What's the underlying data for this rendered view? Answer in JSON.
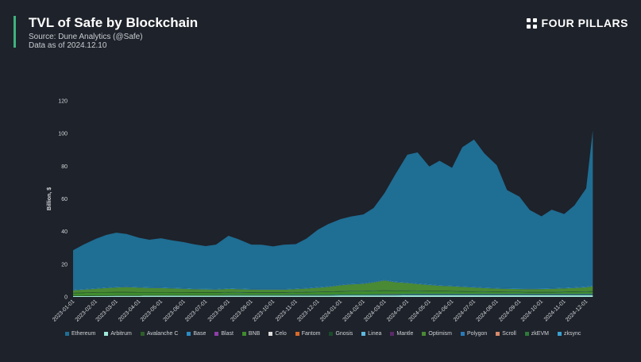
{
  "header": {
    "title": "TVL of Safe by Blockchain",
    "source": "Source: Dune Analytics (@Safe)",
    "data_as_of": "Data as of 2024.12.10",
    "brand": "FOUR PILLARS"
  },
  "colors": {
    "accent": "#3fb27f",
    "background": "#1e222a"
  },
  "chart_data": {
    "type": "area",
    "stacked": true,
    "title": "TVL of Safe by Blockchain",
    "ylabel": "Billion, $",
    "xlabel": "",
    "ylim": [
      0,
      120
    ],
    "yticks": [
      0,
      20,
      40,
      60,
      80,
      100,
      120
    ],
    "grid": false,
    "legend_position": "bottom",
    "xticks": [
      "2023-01-01",
      "2023-02-01",
      "2023-03-01",
      "2023-04-01",
      "2023-05-01",
      "2023-06-01",
      "2023-07-01",
      "2023-08-01",
      "2023-09-01",
      "2023-10-01",
      "2023-11-01",
      "2023-12-01",
      "2024-01-01",
      "2024-02-01",
      "2024-03-01",
      "2024-04-01",
      "2024-05-01",
      "2024-06-01",
      "2024-07-01",
      "2024-08-01",
      "2024-09-01",
      "2024-10-01",
      "2024-11-01",
      "2024-12-01"
    ],
    "x": [
      "2023-01-01",
      "2023-01-15",
      "2023-02-01",
      "2023-02-15",
      "2023-03-01",
      "2023-03-15",
      "2023-04-01",
      "2023-04-15",
      "2023-05-01",
      "2023-05-15",
      "2023-06-01",
      "2023-06-15",
      "2023-07-01",
      "2023-07-15",
      "2023-08-01",
      "2023-08-15",
      "2023-09-01",
      "2023-09-15",
      "2023-10-01",
      "2023-10-15",
      "2023-11-01",
      "2023-11-15",
      "2023-12-01",
      "2023-12-15",
      "2024-01-01",
      "2024-01-15",
      "2024-02-01",
      "2024-02-15",
      "2024-03-01",
      "2024-03-15",
      "2024-04-01",
      "2024-04-15",
      "2024-05-01",
      "2024-05-15",
      "2024-06-01",
      "2024-06-15",
      "2024-07-01",
      "2024-07-15",
      "2024-08-01",
      "2024-08-15",
      "2024-09-01",
      "2024-09-15",
      "2024-10-01",
      "2024-10-15",
      "2024-11-01",
      "2024-11-15",
      "2024-12-01",
      "2024-12-10"
    ],
    "series": [
      {
        "name": "Ethereum",
        "color": "#1f6e94",
        "values": [
          24,
          27,
          30,
          32,
          33,
          32,
          30,
          29,
          30,
          29,
          28,
          27,
          26,
          27,
          32,
          30,
          27,
          27,
          26,
          27,
          27,
          30,
          35,
          38,
          40,
          41,
          42,
          45,
          53,
          65,
          78,
          80,
          72,
          76,
          72,
          85,
          90,
          82,
          75,
          60,
          56,
          48,
          44,
          48,
          45,
          50,
          60,
          95
        ]
      },
      {
        "name": "Arbitrum",
        "color": "#9fe8d8",
        "values": [
          0.5,
          0.5,
          0.6,
          0.6,
          0.7,
          0.7,
          0.7,
          0.8,
          0.8,
          0.8,
          0.8,
          0.8,
          0.8,
          0.8,
          0.8,
          0.8,
          0.8,
          0.8,
          0.8,
          0.8,
          0.8,
          0.8,
          0.8,
          0.8,
          0.9,
          0.9,
          0.9,
          0.9,
          0.9,
          0.9,
          1,
          1,
          1,
          1,
          1,
          1,
          1,
          1,
          1,
          1,
          1,
          1,
          1,
          1,
          1,
          1,
          1,
          1
        ]
      },
      {
        "name": "Avalanche C",
        "color": "#2d5e2a",
        "values": [
          0.3,
          0.3,
          0.3,
          0.3,
          0.3,
          0.3,
          0.3,
          0.3,
          0.3,
          0.3,
          0.3,
          0.3,
          0.3,
          0.3,
          0.3,
          0.3,
          0.3,
          0.3,
          0.3,
          0.3,
          0.3,
          0.3,
          0.3,
          0.3,
          0.3,
          0.3,
          0.3,
          0.3,
          0.3,
          0.3,
          0.3,
          0.3,
          0.3,
          0.3,
          0.3,
          0.3,
          0.3,
          0.3,
          0.3,
          0.3,
          0.3,
          0.3,
          0.3,
          0.3,
          0.3,
          0.3,
          0.3,
          0.3
        ]
      },
      {
        "name": "Base",
        "color": "#2b8cc4",
        "values": [
          0,
          0,
          0,
          0,
          0,
          0,
          0,
          0,
          0,
          0,
          0,
          0,
          0,
          0,
          0.1,
          0.1,
          0.1,
          0.1,
          0.1,
          0.1,
          0.2,
          0.2,
          0.2,
          0.2,
          0.3,
          0.3,
          0.3,
          0.4,
          0.4,
          0.4,
          0.4,
          0.4,
          0.4,
          0.4,
          0.4,
          0.4,
          0.4,
          0.4,
          0.4,
          0.4,
          0.4,
          0.4,
          0.4,
          0.4,
          0.4,
          0.4,
          0.4,
          0.5
        ]
      },
      {
        "name": "Blast",
        "color": "#8e3ea8",
        "values": [
          0,
          0,
          0,
          0,
          0,
          0,
          0,
          0,
          0,
          0,
          0,
          0,
          0,
          0,
          0,
          0,
          0,
          0,
          0,
          0,
          0,
          0,
          0,
          0,
          0,
          0,
          0,
          0,
          0.1,
          0.1,
          0.1,
          0.1,
          0.1,
          0.1,
          0.1,
          0.1,
          0.1,
          0.1,
          0.1,
          0.1,
          0.1,
          0.1,
          0.1,
          0.1,
          0.1,
          0.1,
          0.1,
          0.1
        ]
      },
      {
        "name": "BNB",
        "color": "#3f8c2e",
        "values": [
          1.5,
          1.6,
          1.7,
          1.8,
          1.8,
          1.8,
          1.7,
          1.6,
          1.6,
          1.5,
          1.5,
          1.4,
          1.4,
          1.4,
          1.5,
          1.4,
          1.3,
          1.3,
          1.3,
          1.3,
          1.4,
          1.5,
          1.6,
          1.7,
          1.8,
          1.9,
          1.9,
          2,
          2.1,
          2,
          1.9,
          1.8,
          1.7,
          1.7,
          1.6,
          1.5,
          1.4,
          1.3,
          1.2,
          1.1,
          1.1,
          1,
          1,
          1,
          1.1,
          1.2,
          1.3,
          1.4
        ]
      },
      {
        "name": "Celo",
        "color": "#dddddd",
        "values": [
          0,
          0,
          0,
          0,
          0,
          0,
          0,
          0,
          0,
          0,
          0,
          0,
          0,
          0,
          0,
          0,
          0,
          0,
          0,
          0,
          0,
          0,
          0,
          0,
          0,
          0,
          0,
          0,
          0,
          0,
          0,
          0,
          0,
          0,
          0,
          0,
          0,
          0,
          0,
          0,
          0,
          0,
          0,
          0,
          0,
          0,
          0,
          0
        ]
      },
      {
        "name": "Fantom",
        "color": "#d86a2a",
        "values": [
          0,
          0,
          0,
          0,
          0,
          0,
          0,
          0,
          0,
          0,
          0,
          0,
          0,
          0,
          0,
          0,
          0,
          0,
          0,
          0,
          0,
          0,
          0,
          0,
          0,
          0,
          0,
          0,
          0,
          0,
          0,
          0,
          0,
          0,
          0,
          0,
          0,
          0,
          0,
          0,
          0,
          0,
          0,
          0,
          0,
          0,
          0,
          0
        ]
      },
      {
        "name": "Gnosis",
        "color": "#1a4a2a",
        "values": [
          0.2,
          0.2,
          0.2,
          0.2,
          0.2,
          0.2,
          0.2,
          0.2,
          0.2,
          0.2,
          0.2,
          0.2,
          0.2,
          0.2,
          0.2,
          0.2,
          0.2,
          0.2,
          0.2,
          0.2,
          0.2,
          0.2,
          0.2,
          0.2,
          0.2,
          0.2,
          0.2,
          0.2,
          0.2,
          0.2,
          0.2,
          0.2,
          0.2,
          0.2,
          0.2,
          0.2,
          0.2,
          0.2,
          0.2,
          0.2,
          0.2,
          0.2,
          0.2,
          0.2,
          0.2,
          0.2,
          0.2,
          0.2
        ]
      },
      {
        "name": "Linea",
        "color": "#5fb8e0",
        "values": [
          0,
          0,
          0,
          0,
          0,
          0,
          0,
          0,
          0,
          0,
          0,
          0,
          0,
          0,
          0.1,
          0.1,
          0.1,
          0.1,
          0.1,
          0.1,
          0.1,
          0.1,
          0.1,
          0.1,
          0.1,
          0.1,
          0.1,
          0.1,
          0.1,
          0.1,
          0.1,
          0.1,
          0.1,
          0.1,
          0.1,
          0.1,
          0.1,
          0.1,
          0.1,
          0.1,
          0.1,
          0.1,
          0.1,
          0.1,
          0.1,
          0.1,
          0.1,
          0.1
        ]
      },
      {
        "name": "Mantle",
        "color": "#5a2a6a",
        "values": [
          0,
          0,
          0,
          0,
          0,
          0,
          0,
          0,
          0,
          0,
          0,
          0,
          0,
          0,
          0,
          0,
          0,
          0,
          0,
          0,
          0,
          0,
          0,
          0,
          0,
          0,
          0,
          0,
          0,
          0,
          0,
          0,
          0,
          0,
          0,
          0,
          0,
          0,
          0,
          0,
          0,
          0,
          0,
          0,
          0,
          0,
          0,
          0
        ]
      },
      {
        "name": "Optimism",
        "color": "#4a8a34",
        "values": [
          1.5,
          1.8,
          2.2,
          2.5,
          2.8,
          3,
          2.8,
          2.6,
          2.5,
          2.4,
          2.2,
          2,
          1.9,
          1.8,
          1.9,
          1.8,
          1.7,
          1.6,
          1.6,
          1.6,
          1.8,
          2,
          2.4,
          2.8,
          3.5,
          4,
          4.3,
          5,
          6,
          5,
          4.5,
          4,
          3.5,
          3,
          2.8,
          2.5,
          2.3,
          2,
          1.8,
          1.7,
          1.6,
          1.6,
          1.7,
          1.8,
          2,
          2.2,
          2.5,
          2.8
        ]
      },
      {
        "name": "Polygon",
        "color": "#2a7ab8",
        "values": [
          0.3,
          0.3,
          0.3,
          0.3,
          0.3,
          0.3,
          0.3,
          0.3,
          0.3,
          0.3,
          0.3,
          0.3,
          0.3,
          0.3,
          0.3,
          0.3,
          0.3,
          0.3,
          0.3,
          0.3,
          0.3,
          0.3,
          0.3,
          0.3,
          0.3,
          0.3,
          0.3,
          0.3,
          0.3,
          0.3,
          0.3,
          0.3,
          0.3,
          0.3,
          0.3,
          0.3,
          0.3,
          0.3,
          0.3,
          0.3,
          0.3,
          0.3,
          0.3,
          0.3,
          0.3,
          0.3,
          0.3,
          0.3
        ]
      },
      {
        "name": "Scroll",
        "color": "#d88a6a",
        "values": [
          0,
          0,
          0,
          0,
          0,
          0,
          0,
          0,
          0,
          0,
          0,
          0,
          0,
          0,
          0,
          0,
          0,
          0,
          0,
          0,
          0,
          0,
          0,
          0,
          0,
          0,
          0,
          0,
          0,
          0,
          0,
          0,
          0,
          0,
          0,
          0,
          0,
          0,
          0,
          0,
          0,
          0,
          0,
          0,
          0,
          0,
          0,
          0
        ]
      },
      {
        "name": "zkEVM",
        "color": "#2e7a3a",
        "values": [
          0,
          0,
          0,
          0,
          0,
          0,
          0,
          0,
          0,
          0,
          0,
          0,
          0,
          0,
          0,
          0,
          0,
          0,
          0,
          0,
          0,
          0,
          0,
          0,
          0,
          0,
          0,
          0,
          0,
          0,
          0,
          0,
          0,
          0,
          0,
          0,
          0,
          0,
          0,
          0,
          0,
          0,
          0,
          0,
          0,
          0,
          0,
          0
        ]
      },
      {
        "name": "zksync",
        "color": "#3aa0d0",
        "values": [
          0.2,
          0.2,
          0.2,
          0.2,
          0.2,
          0.2,
          0.2,
          0.2,
          0.2,
          0.2,
          0.2,
          0.2,
          0.2,
          0.2,
          0.2,
          0.2,
          0.2,
          0.2,
          0.2,
          0.2,
          0.2,
          0.2,
          0.2,
          0.2,
          0.2,
          0.2,
          0.2,
          0.2,
          0.2,
          0.2,
          0.2,
          0.2,
          0.2,
          0.2,
          0.2,
          0.2,
          0.2,
          0.2,
          0.2,
          0.2,
          0.2,
          0.2,
          0.2,
          0.2,
          0.2,
          0.2,
          0.2,
          0.2
        ]
      }
    ]
  }
}
